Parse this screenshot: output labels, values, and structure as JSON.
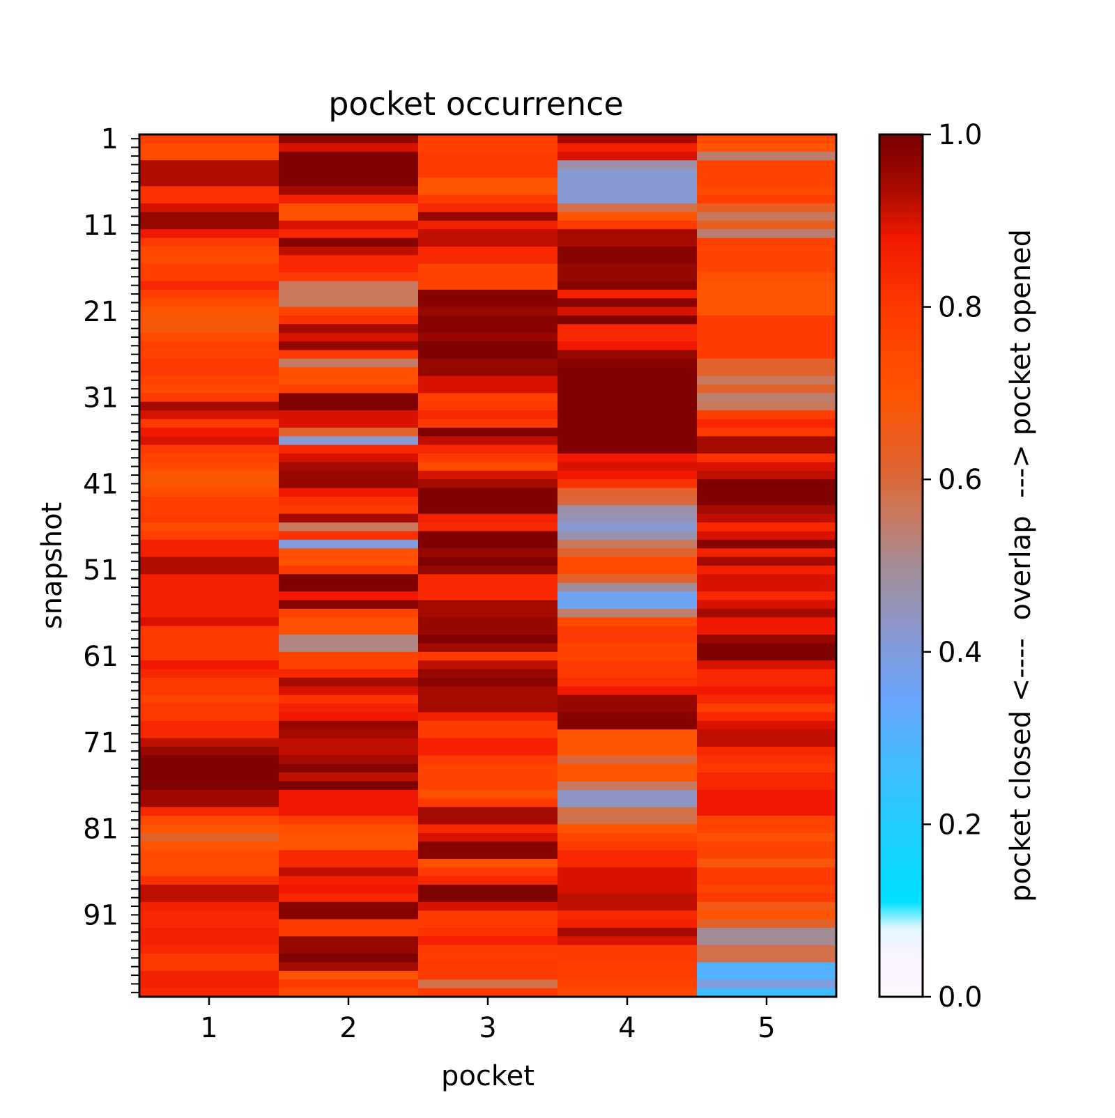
{
  "chart_data": {
    "type": "heatmap",
    "title": "pocket occurrence",
    "xlabel": "pocket",
    "ylabel": "snapshot",
    "x_categories": [
      "1",
      "2",
      "3",
      "4",
      "5"
    ],
    "y_tick_labels": [
      "1",
      "11",
      "21",
      "31",
      "41",
      "51",
      "61",
      "71",
      "81",
      "91"
    ],
    "y_tick_snapshots": [
      1,
      11,
      21,
      31,
      41,
      51,
      61,
      71,
      81,
      91
    ],
    "n_snapshots": 100,
    "colorbar": {
      "label": "pocket closed <----  overlap  ---> pocket opened",
      "range": [
        0,
        1
      ],
      "tick_labels": [
        "0.0",
        "0.2",
        "0.4",
        "0.6",
        "0.8",
        "1.0"
      ],
      "tick_values": [
        0,
        0.2,
        0.4,
        0.6,
        0.8,
        1.0
      ],
      "colormap": [
        [
          0.0,
          "#fcf6fe"
        ],
        [
          0.05,
          "#f8f4fe"
        ],
        [
          0.08,
          "#dff6ff"
        ],
        [
          0.11,
          "#00e0ff"
        ],
        [
          0.2,
          "#22ccff"
        ],
        [
          0.28,
          "#48b8ff"
        ],
        [
          0.34,
          "#66a6ff"
        ],
        [
          0.42,
          "#8898d0"
        ],
        [
          0.5,
          "#a48c96"
        ],
        [
          0.56,
          "#c8785c"
        ],
        [
          0.62,
          "#e2622c"
        ],
        [
          0.7,
          "#ff5400"
        ],
        [
          0.8,
          "#ff3a00"
        ],
        [
          0.88,
          "#f01800"
        ],
        [
          0.94,
          "#a50a00"
        ],
        [
          1.0,
          "#780000"
        ]
      ]
    },
    "pockets": [
      {
        "name": "1",
        "values": [
          0.78,
          0.74,
          0.74,
          0.93,
          0.93,
          0.93,
          0.82,
          0.82,
          0.9,
          0.96,
          0.96,
          0.88,
          0.8,
          0.74,
          0.74,
          0.78,
          0.78,
          0.84,
          0.78,
          0.74,
          0.7,
          0.68,
          0.68,
          0.74,
          0.78,
          0.76,
          0.8,
          0.8,
          0.76,
          0.74,
          0.8,
          0.94,
          0.9,
          0.8,
          0.88,
          0.9,
          0.8,
          0.76,
          0.74,
          0.7,
          0.7,
          0.74,
          0.78,
          0.78,
          0.8,
          0.74,
          0.78,
          0.86,
          0.86,
          0.93,
          0.93,
          0.86,
          0.86,
          0.86,
          0.86,
          0.86,
          0.9,
          0.8,
          0.8,
          0.8,
          0.8,
          0.88,
          0.84,
          0.8,
          0.8,
          0.76,
          0.8,
          0.8,
          0.84,
          0.84,
          0.92,
          0.96,
          0.99,
          0.99,
          0.99,
          0.99,
          0.95,
          0.95,
          0.84,
          0.74,
          0.7,
          0.62,
          0.7,
          0.74,
          0.74,
          0.74,
          0.82,
          0.92,
          0.92,
          0.86,
          0.84,
          0.84,
          0.86,
          0.86,
          0.84,
          0.8,
          0.8,
          0.86,
          0.86,
          0.84
        ]
      },
      {
        "name": "2",
        "values": [
          0.97,
          0.9,
          0.99,
          0.99,
          0.99,
          0.99,
          0.94,
          0.86,
          0.72,
          0.72,
          0.9,
          0.84,
          0.98,
          0.92,
          0.84,
          0.84,
          0.8,
          0.56,
          0.56,
          0.56,
          0.76,
          0.82,
          0.94,
          0.9,
          0.96,
          0.8,
          0.55,
          0.72,
          0.72,
          0.78,
          0.99,
          0.99,
          0.9,
          0.9,
          0.62,
          0.42,
          0.84,
          0.9,
          0.94,
          0.96,
          0.96,
          0.88,
          0.82,
          0.8,
          0.94,
          0.56,
          0.82,
          0.4,
          0.72,
          0.72,
          0.8,
          0.99,
          0.99,
          0.88,
          0.98,
          0.76,
          0.72,
          0.72,
          0.52,
          0.52,
          0.76,
          0.76,
          0.84,
          0.94,
          0.9,
          0.82,
          0.86,
          0.88,
          0.96,
          0.94,
          0.92,
          0.92,
          0.94,
          0.98,
          0.92,
          0.99,
          0.88,
          0.88,
          0.88,
          0.8,
          0.72,
          0.7,
          0.7,
          0.84,
          0.84,
          0.92,
          0.86,
          0.88,
          0.84,
          0.98,
          0.98,
          0.8,
          0.8,
          0.96,
          0.96,
          0.99,
          0.94,
          0.7,
          0.8,
          0.74
        ]
      },
      {
        "name": "3",
        "values": [
          0.78,
          0.78,
          0.8,
          0.8,
          0.8,
          0.7,
          0.7,
          0.8,
          0.84,
          0.96,
          0.86,
          0.92,
          0.92,
          0.84,
          0.84,
          0.76,
          0.76,
          0.76,
          0.98,
          0.98,
          0.96,
          0.98,
          0.98,
          0.96,
          0.99,
          0.99,
          0.96,
          0.96,
          0.9,
          0.9,
          0.78,
          0.8,
          0.84,
          0.8,
          0.99,
          0.92,
          0.84,
          0.8,
          0.74,
          0.9,
          0.94,
          0.99,
          0.99,
          0.99,
          0.86,
          0.84,
          0.99,
          0.99,
          0.96,
          0.99,
          0.96,
          0.84,
          0.84,
          0.84,
          0.94,
          0.94,
          0.96,
          0.96,
          0.99,
          0.94,
          0.8,
          0.92,
          0.96,
          0.98,
          0.94,
          0.94,
          0.94,
          0.86,
          0.8,
          0.8,
          0.86,
          0.86,
          0.8,
          0.76,
          0.76,
          0.76,
          0.72,
          0.8,
          0.94,
          0.94,
          0.84,
          0.9,
          0.98,
          0.98,
          0.72,
          0.8,
          0.84,
          0.99,
          0.99,
          0.9,
          0.8,
          0.8,
          0.82,
          0.86,
          0.8,
          0.78,
          0.8,
          0.8,
          0.58,
          0.8
        ]
      },
      {
        "name": "4",
        "values": [
          0.94,
          0.86,
          0.9,
          0.48,
          0.42,
          0.42,
          0.42,
          0.42,
          0.58,
          0.7,
          0.8,
          0.94,
          0.94,
          0.98,
          0.98,
          0.96,
          0.96,
          0.98,
          0.86,
          0.98,
          0.9,
          0.99,
          0.84,
          0.84,
          0.88,
          0.96,
          0.98,
          0.99,
          0.99,
          0.99,
          0.99,
          0.99,
          0.99,
          0.99,
          0.99,
          0.99,
          0.99,
          0.88,
          0.9,
          0.88,
          0.82,
          0.62,
          0.6,
          0.48,
          0.46,
          0.42,
          0.46,
          0.56,
          0.62,
          0.74,
          0.74,
          0.62,
          0.5,
          0.36,
          0.36,
          0.54,
          0.74,
          0.8,
          0.8,
          0.76,
          0.76,
          0.8,
          0.8,
          0.82,
          0.88,
          0.96,
          0.96,
          0.98,
          0.98,
          0.7,
          0.7,
          0.7,
          0.6,
          0.7,
          0.7,
          0.56,
          0.44,
          0.44,
          0.58,
          0.58,
          0.7,
          0.76,
          0.8,
          0.84,
          0.84,
          0.9,
          0.9,
          0.9,
          0.92,
          0.92,
          0.84,
          0.86,
          0.94,
          0.9,
          0.8,
          0.8,
          0.78,
          0.78,
          0.76,
          0.74
        ]
      },
      {
        "name": "5",
        "values": [
          0.74,
          0.7,
          0.54,
          0.76,
          0.76,
          0.76,
          0.74,
          0.78,
          0.64,
          0.56,
          0.64,
          0.54,
          0.78,
          0.76,
          0.76,
          0.76,
          0.72,
          0.7,
          0.7,
          0.7,
          0.7,
          0.8,
          0.8,
          0.8,
          0.8,
          0.8,
          0.62,
          0.62,
          0.56,
          0.62,
          0.54,
          0.56,
          0.78,
          0.84,
          0.8,
          0.94,
          0.94,
          0.82,
          0.9,
          0.92,
          0.99,
          0.99,
          0.99,
          0.94,
          0.92,
          0.84,
          0.9,
          0.98,
          0.86,
          0.94,
          0.86,
          0.9,
          0.9,
          0.84,
          0.9,
          0.94,
          0.88,
          0.88,
          0.96,
          0.99,
          0.99,
          0.9,
          0.84,
          0.84,
          0.88,
          0.84,
          0.78,
          0.84,
          0.9,
          0.92,
          0.92,
          0.84,
          0.82,
          0.8,
          0.84,
          0.84,
          0.88,
          0.88,
          0.88,
          0.76,
          0.76,
          0.72,
          0.76,
          0.76,
          0.68,
          0.8,
          0.8,
          0.76,
          0.8,
          0.66,
          0.7,
          0.62,
          0.5,
          0.5,
          0.58,
          0.58,
          0.3,
          0.3,
          0.4,
          0.26
        ]
      }
    ]
  }
}
